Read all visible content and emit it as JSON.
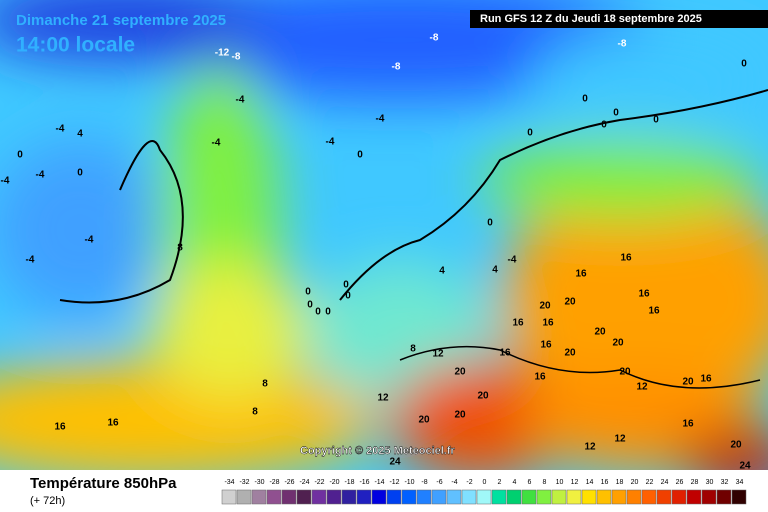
{
  "header": {
    "date": "Dimanche 21 septembre 2025",
    "time": "14:00 locale",
    "run": "Run GFS 12 Z du Jeudi 18 septembre 2025"
  },
  "copyright": "Copyright © 2025 Meteociel.fr",
  "footer": {
    "title": "Température 850hPa",
    "lead": "(+ 72h)"
  },
  "scale": {
    "values": [
      -34,
      -32,
      -30,
      -28,
      -26,
      -24,
      -22,
      -20,
      -18,
      -16,
      -14,
      -12,
      -10,
      -8,
      -6,
      -4,
      -2,
      0,
      2,
      4,
      6,
      8,
      10,
      12,
      14,
      16,
      18,
      20,
      22,
      24,
      26,
      28,
      30,
      32,
      34
    ],
    "colors": [
      "#d0d0d0",
      "#b0b0b0",
      "#a080a0",
      "#905090",
      "#703070",
      "#502050",
      "#7030a0",
      "#502090",
      "#3020a0",
      "#2020c0",
      "#0000e0",
      "#0040f0",
      "#0060ff",
      "#2080ff",
      "#40a0ff",
      "#60c0ff",
      "#80e0ff",
      "#a0f8f8",
      "#00e0a0",
      "#00d070",
      "#40e040",
      "#80f040",
      "#c0f040",
      "#f0f040",
      "#ffe000",
      "#ffc000",
      "#ffa000",
      "#ff8000",
      "#ff6000",
      "#f04000",
      "#e02000",
      "#c00000",
      "#a00000",
      "#700000",
      "#300000"
    ]
  },
  "map_labels": [
    -12,
    -8,
    -8,
    -8,
    -8,
    0,
    -4,
    -4,
    -4,
    -4,
    -4,
    4,
    0,
    0,
    -4,
    -4,
    -4,
    -4,
    8,
    0,
    0,
    0,
    0,
    0,
    0,
    0,
    4,
    -4,
    4,
    16,
    16,
    16,
    16,
    20,
    20,
    16,
    16,
    20,
    20,
    16,
    20,
    16,
    12,
    8,
    20,
    16,
    20,
    12,
    20,
    16,
    20,
    20,
    20,
    24,
    12,
    8,
    8,
    16,
    16,
    12,
    12,
    16,
    20,
    24,
    0,
    0,
    0,
    0,
    0,
    0
  ]
}
